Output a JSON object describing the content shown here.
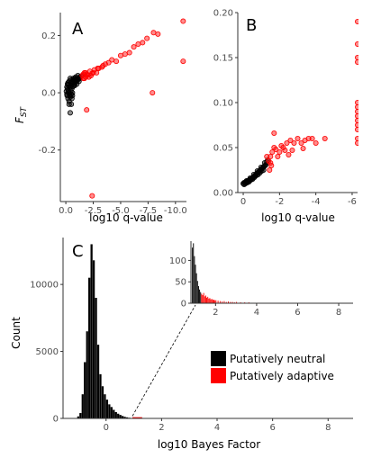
{
  "colors": {
    "adaptive": "#ff0000",
    "neutral": "#000000",
    "axis": "#333333",
    "tick_text": "#4d4d4d"
  },
  "chart_data": [
    {
      "type": "scatter",
      "panel_label": "A",
      "xlabel": "log10 q-value",
      "ylabel": "FST",
      "ylabel_main": "F",
      "ylabel_sub": "ST",
      "x_reversed": true,
      "xlim": [
        0.5,
        -11
      ],
      "ylim": [
        -0.38,
        0.28
      ],
      "x_ticks": [
        0.0,
        -2.5,
        -5.0,
        -7.5,
        -10.0
      ],
      "x_tick_labels": [
        "0.0",
        "-2.5",
        "-5.0",
        "-7.5",
        "-10.0"
      ],
      "y_ticks": [
        0.2,
        0.0,
        -0.2
      ],
      "y_tick_labels": [
        "0.2",
        "0.0",
        "-0.2"
      ],
      "series": [
        {
          "category": "neutral",
          "points": [
            [
              -0.1,
              -0.005
            ],
            [
              -0.2,
              0.01
            ],
            [
              -0.3,
              0.0
            ],
            [
              -0.4,
              0.02
            ],
            [
              -0.5,
              0.025
            ],
            [
              -0.6,
              0.03
            ],
            [
              -0.7,
              0.035
            ],
            [
              -0.8,
              0.04
            ],
            [
              -0.9,
              0.042
            ],
            [
              -1.0,
              0.045
            ],
            [
              -1.1,
              0.05
            ],
            [
              -1.2,
              0.052
            ],
            [
              -1.3,
              0.055
            ],
            [
              -0.15,
              0.015
            ],
            [
              -0.35,
              -0.01
            ],
            [
              -0.25,
              0.03
            ],
            [
              -0.45,
              0.005
            ],
            [
              -0.55,
              0.015
            ],
            [
              -0.65,
              0.022
            ],
            [
              -0.75,
              0.028
            ],
            [
              -0.85,
              0.036
            ],
            [
              -0.95,
              0.038
            ],
            [
              -1.05,
              0.044
            ],
            [
              -1.15,
              0.048
            ],
            [
              -0.2,
              -0.02
            ],
            [
              -0.3,
              0.04
            ],
            [
              -0.5,
              0.045
            ],
            [
              -0.7,
              0.05
            ],
            [
              -0.9,
              0.055
            ],
            [
              -1.1,
              0.06
            ],
            [
              -0.4,
              -0.015
            ],
            [
              -0.6,
              0.0
            ],
            [
              -0.1,
              0.02
            ],
            [
              -0.05,
              0.005
            ],
            [
              -0.12,
              -0.01
            ],
            [
              -0.8,
              0.025
            ],
            [
              -1.2,
              0.04
            ],
            [
              -1.0,
              0.03
            ],
            [
              -0.45,
              0.035
            ],
            [
              -0.35,
              0.02
            ],
            [
              -0.6,
              -0.01
            ],
            [
              -0.3,
              -0.03
            ],
            [
              -0.4,
              0.05
            ],
            [
              -0.55,
              -0.02
            ],
            [
              -0.25,
              0.0
            ],
            [
              -0.15,
              0.03
            ],
            [
              -1.4,
              0.058
            ],
            [
              -0.7,
              0.045
            ],
            [
              -0.85,
              0.05
            ],
            [
              -0.5,
              -0.005
            ],
            [
              -0.4,
              -0.07
            ],
            [
              -0.5,
              -0.04
            ],
            [
              -0.3,
              -0.04
            ],
            [
              -0.2,
              0.035
            ],
            [
              -0.65,
              0.04
            ],
            [
              -0.95,
              0.048
            ],
            [
              -1.25,
              0.05
            ]
          ]
        },
        {
          "category": "adaptive",
          "points": [
            [
              -1.5,
              0.06
            ],
            [
              -1.6,
              0.065
            ],
            [
              -1.7,
              0.05
            ],
            [
              -1.8,
              0.07
            ],
            [
              -1.9,
              0.065
            ],
            [
              -2.0,
              0.062
            ],
            [
              -2.2,
              0.075
            ],
            [
              -2.4,
              0.068
            ],
            [
              -2.6,
              0.08
            ],
            [
              -2.8,
              0.07
            ],
            [
              -3.0,
              0.085
            ],
            [
              -3.3,
              0.09
            ],
            [
              -3.6,
              0.1
            ],
            [
              -3.9,
              0.105
            ],
            [
              -4.2,
              0.115
            ],
            [
              -4.6,
              0.11
            ],
            [
              -5.0,
              0.13
            ],
            [
              -5.4,
              0.135
            ],
            [
              -5.8,
              0.14
            ],
            [
              -6.2,
              0.16
            ],
            [
              -6.6,
              0.17
            ],
            [
              -7.0,
              0.175
            ],
            [
              -7.4,
              0.19
            ],
            [
              -8.0,
              0.21
            ],
            [
              -8.4,
              0.205
            ],
            [
              -10.7,
              0.25
            ],
            [
              -10.7,
              0.11
            ],
            [
              -7.9,
              0.0
            ],
            [
              -1.6,
              0.05
            ],
            [
              -1.7,
              0.07
            ],
            [
              -2.1,
              0.055
            ],
            [
              -2.5,
              0.07
            ],
            [
              -2.9,
              0.085
            ],
            [
              -3.4,
              0.095
            ],
            [
              -2.4,
              -0.36
            ],
            [
              -1.9,
              -0.06
            ],
            [
              -2.3,
              0.06
            ],
            [
              -1.8,
              0.055
            ]
          ]
        }
      ]
    },
    {
      "type": "scatter",
      "panel_label": "B",
      "xlabel": "log10 q-value",
      "ylabel": "",
      "x_reversed": true,
      "xlim": [
        0.3,
        -6.3
      ],
      "ylim": [
        0,
        0.2
      ],
      "x_ticks": [
        0,
        -2,
        -4,
        -6
      ],
      "x_tick_labels": [
        "0",
        "-2",
        "-4",
        "-6"
      ],
      "y_ticks": [
        0.0,
        0.05,
        0.1,
        0.15,
        0.2
      ],
      "y_tick_labels": [
        "0.00",
        "0.05",
        "0.10",
        "0.15",
        "0.20"
      ],
      "series": [
        {
          "category": "neutral",
          "points": [
            [
              0.0,
              0.01
            ],
            [
              -0.05,
              0.011
            ],
            [
              -0.1,
              0.011
            ],
            [
              -0.15,
              0.012
            ],
            [
              -0.2,
              0.012
            ],
            [
              -0.25,
              0.013
            ],
            [
              -0.3,
              0.013
            ],
            [
              -0.35,
              0.014
            ],
            [
              -0.4,
              0.015
            ],
            [
              -0.45,
              0.015
            ],
            [
              -0.5,
              0.016
            ],
            [
              -0.55,
              0.017
            ],
            [
              -0.6,
              0.018
            ],
            [
              -0.65,
              0.019
            ],
            [
              -0.7,
              0.02
            ],
            [
              -0.75,
              0.021
            ],
            [
              -0.8,
              0.022
            ],
            [
              -0.85,
              0.023
            ],
            [
              -0.9,
              0.024
            ],
            [
              -0.95,
              0.025
            ],
            [
              -1.0,
              0.026
            ],
            [
              -1.05,
              0.027
            ],
            [
              -1.1,
              0.028
            ],
            [
              -1.15,
              0.029
            ],
            [
              -1.2,
              0.03
            ],
            [
              -1.25,
              0.031
            ],
            [
              -0.12,
              0.01
            ],
            [
              -0.22,
              0.011
            ],
            [
              -0.32,
              0.012
            ],
            [
              -0.42,
              0.014
            ],
            [
              -0.52,
              0.015
            ],
            [
              -0.62,
              0.017
            ],
            [
              -0.72,
              0.019
            ],
            [
              -0.82,
              0.02
            ],
            [
              -0.92,
              0.022
            ],
            [
              -1.02,
              0.024
            ],
            [
              -1.12,
              0.025
            ],
            [
              -0.05,
              0.009
            ],
            [
              -0.18,
              0.013
            ],
            [
              -0.38,
              0.016
            ],
            [
              -0.58,
              0.02
            ],
            [
              -0.78,
              0.024
            ],
            [
              -0.98,
              0.028
            ],
            [
              -1.18,
              0.033
            ],
            [
              -1.3,
              0.034
            ],
            [
              -1.35,
              0.036
            ]
          ]
        },
        {
          "category": "adaptive",
          "points": [
            [
              -1.4,
              0.035
            ],
            [
              -1.5,
              0.04
            ],
            [
              -1.45,
              0.025
            ],
            [
              -1.55,
              0.03
            ],
            [
              -1.6,
              0.045
            ],
            [
              -1.7,
              0.05
            ],
            [
              -1.8,
              0.048
            ],
            [
              -1.9,
              0.04
            ],
            [
              -2.0,
              0.045
            ],
            [
              -2.1,
              0.052
            ],
            [
              -2.2,
              0.05
            ],
            [
              -2.3,
              0.047
            ],
            [
              -2.4,
              0.055
            ],
            [
              -2.5,
              0.042
            ],
            [
              -2.6,
              0.058
            ],
            [
              -2.8,
              0.055
            ],
            [
              -3.0,
              0.06
            ],
            [
              -3.2,
              0.055
            ],
            [
              -3.4,
              0.058
            ],
            [
              -3.6,
              0.06
            ],
            [
              -3.8,
              0.06
            ],
            [
              -4.0,
              0.055
            ],
            [
              -4.5,
              0.06
            ],
            [
              -1.7,
              0.066
            ],
            [
              -1.3,
              0.04
            ],
            [
              -1.5,
              0.033
            ],
            [
              -2.7,
              0.047
            ],
            [
              -3.3,
              0.049
            ],
            [
              -6.3,
              0.19
            ],
            [
              -6.3,
              0.165
            ],
            [
              -6.3,
              0.15
            ],
            [
              -6.3,
              0.145
            ],
            [
              -6.3,
              0.1
            ],
            [
              -6.3,
              0.095
            ],
            [
              -6.3,
              0.09
            ],
            [
              -6.3,
              0.085
            ],
            [
              -6.3,
              0.08
            ],
            [
              -6.3,
              0.075
            ],
            [
              -6.3,
              0.07
            ],
            [
              -6.3,
              0.06
            ],
            [
              -6.3,
              0.055
            ]
          ]
        }
      ]
    },
    {
      "type": "bar",
      "panel_label": "C",
      "xlabel": "log10 Bayes Factor",
      "ylabel": "Count",
      "xlim": [
        -1.55,
        8.9
      ],
      "ylim": [
        0,
        13500
      ],
      "x_ticks": [
        0,
        2,
        4,
        6,
        8
      ],
      "x_tick_labels": [
        "0",
        "2",
        "4",
        "6",
        "8"
      ],
      "y_ticks": [
        0,
        5000,
        10000
      ],
      "y_tick_labels": [
        "0",
        "5000",
        "10000"
      ],
      "bin_width": 0.08,
      "bin_starts": [
        -1.12,
        -1.04,
        -0.96,
        -0.88,
        -0.8,
        -0.72,
        -0.64,
        -0.56,
        -0.48,
        -0.4,
        -0.32,
        -0.24,
        -0.16,
        -0.08,
        0.0,
        0.08,
        0.16,
        0.24,
        0.32,
        0.4,
        0.48,
        0.56,
        0.64,
        0.72,
        0.8
      ],
      "counts": [
        30,
        150,
        400,
        1800,
        4200,
        6500,
        10500,
        13000,
        11800,
        9000,
        5500,
        3300,
        2400,
        1800,
        1400,
        1050,
        850,
        640,
        470,
        350,
        260,
        180,
        120,
        80,
        50
      ],
      "adaptive_line": {
        "x": [
          0.95,
          1.3
        ],
        "value": 40
      },
      "legend": [
        {
          "label": "Putatively neutral",
          "category": "neutral"
        },
        {
          "label": "Putatively adaptive",
          "category": "adaptive"
        }
      ],
      "inset": {
        "type": "bar",
        "xlim": [
          0.8,
          8.7
        ],
        "ylim": [
          0,
          145
        ],
        "x_ticks": [
          2,
          4,
          6,
          8
        ],
        "x_tick_labels": [
          "2",
          "4",
          "6",
          "8"
        ],
        "y_ticks": [
          0,
          50,
          100
        ],
        "y_tick_labels": [
          "0",
          "50",
          "100"
        ],
        "bin_width": 0.05,
        "neutral_bins": [
          [
            0.85,
            130
          ],
          [
            0.9,
            140
          ],
          [
            0.95,
            110
          ],
          [
            1.0,
            90
          ],
          [
            1.05,
            70
          ],
          [
            1.1,
            52
          ],
          [
            1.15,
            40
          ],
          [
            1.2,
            32
          ],
          [
            1.25,
            26
          ]
        ],
        "adaptive_bins": [
          [
            1.3,
            22
          ],
          [
            1.35,
            19
          ],
          [
            1.4,
            24
          ],
          [
            1.45,
            16
          ],
          [
            1.5,
            18
          ],
          [
            1.55,
            13
          ],
          [
            1.6,
            15
          ],
          [
            1.65,
            11
          ],
          [
            1.7,
            12
          ],
          [
            1.75,
            9
          ],
          [
            1.8,
            10
          ],
          [
            1.85,
            8
          ],
          [
            1.9,
            8
          ],
          [
            1.95,
            7
          ],
          [
            2.0,
            7
          ],
          [
            2.1,
            6
          ],
          [
            2.2,
            5
          ],
          [
            2.3,
            4
          ],
          [
            2.4,
            5
          ],
          [
            2.5,
            3
          ],
          [
            2.6,
            4
          ],
          [
            2.7,
            3
          ],
          [
            2.8,
            3
          ],
          [
            2.9,
            2
          ],
          [
            3.0,
            3
          ],
          [
            3.2,
            2
          ],
          [
            3.4,
            2
          ],
          [
            3.6,
            2
          ],
          [
            3.9,
            1
          ],
          [
            4.2,
            1
          ],
          [
            4.6,
            1
          ],
          [
            5.1,
            1
          ],
          [
            5.7,
            1
          ],
          [
            6.2,
            1
          ],
          [
            7.0,
            1
          ],
          [
            8.0,
            1
          ]
        ]
      }
    }
  ]
}
